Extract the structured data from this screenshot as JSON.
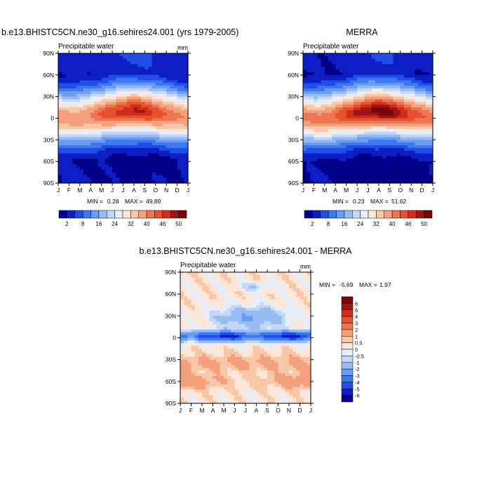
{
  "colors": {
    "diverging_scale": [
      "#00008b",
      "#0d1fc4",
      "#1f4fe8",
      "#3d78f0",
      "#6b9cf2",
      "#97bbf4",
      "#c3d8f8",
      "#e7eef8",
      "#fbe6d8",
      "#f7c7a8",
      "#f4a07d",
      "#ee7650",
      "#e8502e",
      "#cd2f1d",
      "#a01417",
      "#7a0608"
    ],
    "axis": "#000000",
    "background": "#ffffff"
  },
  "chart_data": [
    {
      "type": "heatmap",
      "title": "b.e13.BHISTC5CN.ne30_g16.sehires24.001 (yrs 1979-2005)",
      "subtitle": "Precipitable water",
      "units": "mm",
      "x_tick_labels": [
        "J",
        "F",
        "M",
        "A",
        "M",
        "J",
        "J",
        "A",
        "S",
        "O",
        "N",
        "D",
        "J"
      ],
      "y_tick_labels": [
        "90N",
        "60N",
        "30N",
        "0",
        "30S",
        "60S",
        "90S"
      ],
      "stats": {
        "min_label": "MIN =",
        "min": "0.28",
        "max_label": "MAX =",
        "max": "49.89"
      },
      "colorbar": {
        "orientation": "horizontal",
        "levels": [
          0,
          2,
          5,
          8,
          12,
          16,
          20,
          24,
          28,
          32,
          36,
          40,
          43,
          46,
          48,
          50,
          55
        ],
        "tick_labels": [
          "2",
          "8",
          "16",
          "24",
          "32",
          "40",
          "46",
          "50"
        ]
      },
      "field_approx": {
        "equator_max": 48,
        "peak_month": "Aug",
        "pole_min": 1
      }
    },
    {
      "type": "heatmap",
      "title": "MERRA",
      "subtitle": "Precipitable water",
      "units": "",
      "x_tick_labels": [
        "J",
        "F",
        "M",
        "A",
        "M",
        "J",
        "J",
        "A",
        "S",
        "O",
        "N",
        "D",
        "J"
      ],
      "y_tick_labels": [
        "90N",
        "60N",
        "30N",
        "0",
        "30S",
        "60S",
        "90S"
      ],
      "stats": {
        "min_label": "MIN =",
        "min": "0.23",
        "max_label": "MAX =",
        "max": "51.62"
      },
      "colorbar": {
        "orientation": "horizontal",
        "levels": [
          0,
          2,
          5,
          8,
          12,
          16,
          20,
          24,
          28,
          32,
          36,
          40,
          43,
          46,
          48,
          50,
          55
        ],
        "tick_labels": [
          "2",
          "8",
          "16",
          "24",
          "32",
          "40",
          "46",
          "50"
        ]
      },
      "field_approx": {
        "equator_max": 51,
        "peak_month": "Aug",
        "pole_min": 0.5
      }
    },
    {
      "type": "heatmap",
      "title": "b.e13.BHISTC5CN.ne30_g16.sehires24.001 - MERRA",
      "subtitle": "Precipitable water",
      "units": "mm",
      "x_tick_labels": [
        "J",
        "F",
        "M",
        "A",
        "M",
        "J",
        "J",
        "A",
        "S",
        "O",
        "N",
        "D",
        "J"
      ],
      "y_tick_labels": [
        "90N",
        "60N",
        "30N",
        "0",
        "30S",
        "60S",
        "90S"
      ],
      "stats": {
        "min_label": "MIN =",
        "min": "-5.69",
        "max_label": "MAX =",
        "max": "1.97"
      },
      "colorbar": {
        "orientation": "vertical",
        "levels": [
          -9,
          -6,
          -5,
          -4,
          -3,
          -2,
          -1,
          -0.5,
          0,
          0.5,
          1,
          2,
          3,
          4,
          5,
          6,
          9
        ],
        "tick_labels": [
          "6",
          "5",
          "4",
          "3",
          "2",
          "1",
          "0.5",
          "0",
          "-0.5",
          "-1",
          "-2",
          "-3",
          "-4",
          "-5",
          "-6"
        ]
      },
      "field_approx": {
        "equatorial_dry_bias": -5.5,
        "southern_midlat_wet_bias": 1.5
      }
    }
  ]
}
